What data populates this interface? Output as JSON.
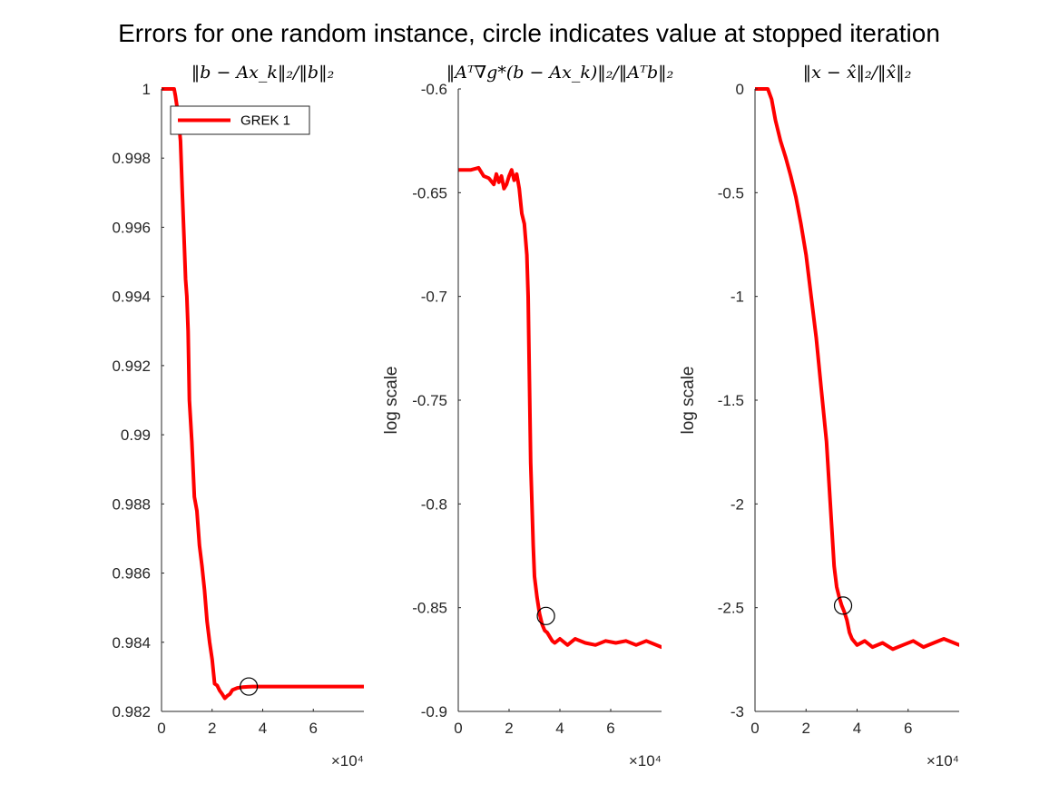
{
  "figure": {
    "title": "Errors for one random instance, circle indicates value at stopped iteration",
    "series_color": "#ff0000",
    "marker_color": "#000000"
  },
  "chart_data": [
    {
      "type": "line",
      "title": "‖b − Ax_k‖₂/‖b‖₂",
      "xlabel": "",
      "ylabel": "",
      "x_multiplier": "×10⁴",
      "xlim": [
        0,
        8
      ],
      "ylim": [
        0.982,
        1.0
      ],
      "xticks": [
        0,
        2,
        4,
        6
      ],
      "xtick_labels": [
        "0",
        "2",
        "4",
        "6"
      ],
      "yticks": [
        0.982,
        0.984,
        0.986,
        0.988,
        0.99,
        0.992,
        0.994,
        0.996,
        0.998,
        1.0
      ],
      "ytick_labels": [
        "0.982",
        "0.984",
        "0.986",
        "0.988",
        "0.99",
        "0.992",
        "0.994",
        "0.996",
        "0.998",
        "1"
      ],
      "legend": {
        "position": "top-left",
        "entries": [
          "GREK 1"
        ]
      },
      "series": [
        {
          "name": "GREK 1",
          "x": [
            0,
            0.5,
            0.55,
            0.65,
            0.75,
            0.82,
            0.9,
            0.95,
            1.0,
            1.05,
            1.1,
            1.2,
            1.3,
            1.4,
            1.5,
            1.6,
            1.7,
            1.8,
            1.9,
            2.0,
            2.1,
            2.2,
            2.3,
            2.4,
            2.5,
            2.6,
            2.7,
            2.8,
            3.0,
            3.2,
            3.4,
            3.6,
            4.0,
            5.0,
            6.0,
            7.0,
            8.0
          ],
          "y": [
            1.0,
            1.0,
            0.9998,
            0.9993,
            0.9985,
            0.997,
            0.9955,
            0.9945,
            0.994,
            0.993,
            0.991,
            0.9898,
            0.9882,
            0.9878,
            0.9868,
            0.9862,
            0.9855,
            0.9846,
            0.984,
            0.9835,
            0.9828,
            0.98275,
            0.9826,
            0.9825,
            0.98238,
            0.98245,
            0.9825,
            0.98262,
            0.98268,
            0.9827,
            0.98271,
            0.98272,
            0.98272,
            0.98272,
            0.98272,
            0.98272,
            0.98272
          ]
        }
      ],
      "stop_marker": {
        "x": 3.45,
        "y": 0.98272
      }
    },
    {
      "type": "line",
      "title": "‖Aᵀ∇g*(b − Ax_k)‖₂/‖Aᵀb‖₂",
      "xlabel": "",
      "ylabel": "log scale",
      "x_multiplier": "×10⁴",
      "xlim": [
        0,
        8
      ],
      "ylim": [
        -0.9,
        -0.6
      ],
      "xticks": [
        0,
        2,
        4,
        6
      ],
      "xtick_labels": [
        "0",
        "2",
        "4",
        "6"
      ],
      "yticks": [
        -0.9,
        -0.85,
        -0.8,
        -0.75,
        -0.7,
        -0.65,
        -0.6
      ],
      "ytick_labels": [
        "-0.9",
        "-0.85",
        "-0.8",
        "-0.75",
        "-0.7",
        "-0.65",
        "-0.6"
      ],
      "series": [
        {
          "name": "GREK 1",
          "x": [
            0,
            0.5,
            0.8,
            1.0,
            1.2,
            1.4,
            1.5,
            1.6,
            1.7,
            1.8,
            1.9,
            2.0,
            2.1,
            2.2,
            2.3,
            2.4,
            2.5,
            2.6,
            2.7,
            2.75,
            2.8,
            2.85,
            2.9,
            2.95,
            3.0,
            3.1,
            3.2,
            3.3,
            3.4,
            3.5,
            3.6,
            3.7,
            3.8,
            4.0,
            4.3,
            4.6,
            5.0,
            5.4,
            5.8,
            6.2,
            6.6,
            7.0,
            7.4,
            8.0
          ],
          "y": [
            -0.639,
            -0.639,
            -0.638,
            -0.642,
            -0.643,
            -0.646,
            -0.641,
            -0.645,
            -0.642,
            -0.648,
            -0.646,
            -0.642,
            -0.639,
            -0.644,
            -0.641,
            -0.648,
            -0.66,
            -0.665,
            -0.68,
            -0.7,
            -0.74,
            -0.78,
            -0.8,
            -0.82,
            -0.835,
            -0.845,
            -0.853,
            -0.858,
            -0.861,
            -0.862,
            -0.864,
            -0.866,
            -0.867,
            -0.865,
            -0.868,
            -0.865,
            -0.867,
            -0.868,
            -0.866,
            -0.867,
            -0.866,
            -0.868,
            -0.866,
            -0.869
          ]
        }
      ],
      "stop_marker": {
        "x": 3.45,
        "y": -0.854
      }
    },
    {
      "type": "line",
      "title": "‖x − x̂‖₂/‖x̂‖₂",
      "xlabel": "",
      "ylabel": "log scale",
      "x_multiplier": "×10⁴",
      "xlim": [
        0,
        8
      ],
      "ylim": [
        -3,
        0
      ],
      "xticks": [
        0,
        2,
        4,
        6
      ],
      "xtick_labels": [
        "0",
        "2",
        "4",
        "6"
      ],
      "yticks": [
        -3,
        -2.5,
        -2,
        -1.5,
        -1,
        -0.5,
        0
      ],
      "ytick_labels": [
        "-3",
        "-2.5",
        "-2",
        "-1.5",
        "-1",
        "-0.5",
        "0"
      ],
      "series": [
        {
          "name": "GREK 1",
          "x": [
            0,
            0.5,
            0.65,
            0.8,
            1.0,
            1.2,
            1.4,
            1.6,
            1.8,
            2.0,
            2.2,
            2.4,
            2.6,
            2.8,
            2.9,
            3.0,
            3.1,
            3.2,
            3.3,
            3.4,
            3.5,
            3.6,
            3.7,
            3.8,
            4.0,
            4.3,
            4.6,
            5.0,
            5.4,
            5.8,
            6.2,
            6.6,
            7.0,
            7.4,
            8.0
          ],
          "y": [
            0.0,
            0.0,
            -0.05,
            -0.15,
            -0.25,
            -0.33,
            -0.42,
            -0.52,
            -0.65,
            -0.8,
            -1.0,
            -1.2,
            -1.45,
            -1.7,
            -1.9,
            -2.1,
            -2.3,
            -2.4,
            -2.45,
            -2.49,
            -2.52,
            -2.56,
            -2.62,
            -2.65,
            -2.68,
            -2.66,
            -2.69,
            -2.67,
            -2.7,
            -2.68,
            -2.66,
            -2.69,
            -2.67,
            -2.65,
            -2.68
          ]
        }
      ],
      "stop_marker": {
        "x": 3.45,
        "y": -2.49
      }
    }
  ]
}
